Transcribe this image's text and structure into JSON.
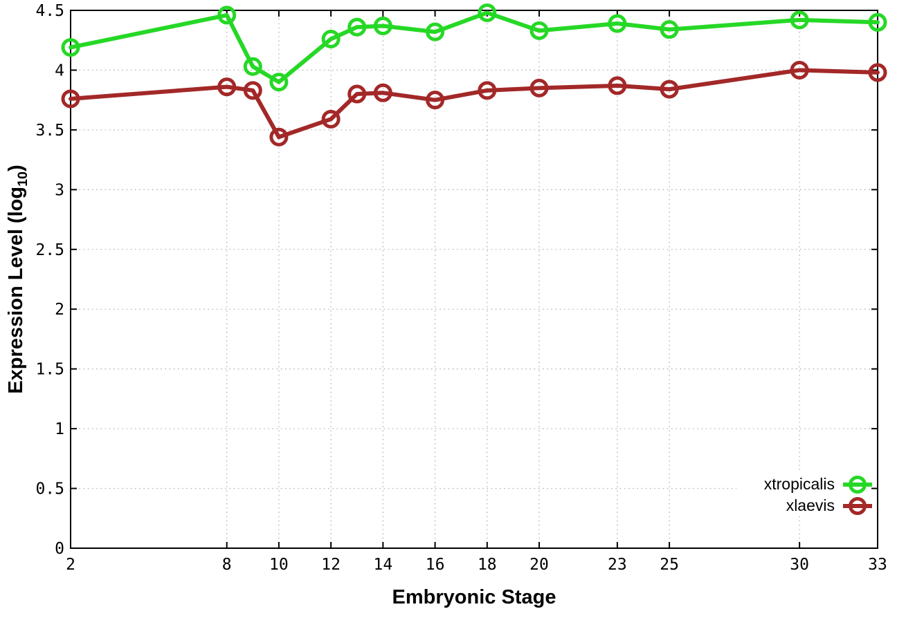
{
  "figure": {
    "background": "#ffffff",
    "x_axis_title": "Embryonic Stage",
    "y_axis_title_prefix": "Expression Level (log",
    "y_axis_title_sub": "10",
    "y_axis_title_suffix": ")"
  },
  "legend": {
    "position": "inside-bottom-right",
    "items": [
      {
        "label": "xtropicalis"
      },
      {
        "label": "xlaevis"
      }
    ]
  },
  "chart_data": {
    "type": "line",
    "title": "",
    "xlabel": "Embryonic Stage",
    "ylabel": "Expression Level (log10)",
    "x": [
      2,
      8,
      9,
      10,
      12,
      13,
      14,
      16,
      18,
      20,
      23,
      25,
      30,
      33
    ],
    "series": [
      {
        "name": "xtropicalis",
        "color": "#26d826",
        "marker": "open-circle",
        "values": [
          4.19,
          4.46,
          4.03,
          3.9,
          4.26,
          4.36,
          4.37,
          4.32,
          4.48,
          4.33,
          4.39,
          4.34,
          4.42,
          4.4
        ]
      },
      {
        "name": "xlaevis",
        "color": "#a32828",
        "marker": "open-circle",
        "values": [
          3.76,
          3.86,
          3.83,
          3.44,
          3.59,
          3.8,
          3.81,
          3.75,
          3.83,
          3.85,
          3.87,
          3.84,
          4.0,
          3.98
        ]
      }
    ],
    "xlim": [
      2,
      33
    ],
    "ylim": [
      0,
      4.5
    ],
    "xtick_values": [
      2,
      8,
      10,
      12,
      14,
      16,
      18,
      20,
      23,
      25,
      30,
      33
    ],
    "xtick_labels": [
      "2",
      "8",
      "10",
      "12",
      "14",
      "16",
      "18",
      "20",
      "23",
      "25",
      "30",
      "33"
    ],
    "ytick_values": [
      0,
      0.5,
      1,
      1.5,
      2,
      2.5,
      3,
      3.5,
      4,
      4.5
    ],
    "ytick_labels": [
      "0",
      "0.5",
      "1",
      "1.5",
      "2",
      "2.5",
      "3",
      "3.5",
      "4",
      "4.5"
    ],
    "grid": true,
    "grid_style": "dotted",
    "colors": {
      "grid": "#b3b3b3",
      "axis": "#000000"
    }
  }
}
